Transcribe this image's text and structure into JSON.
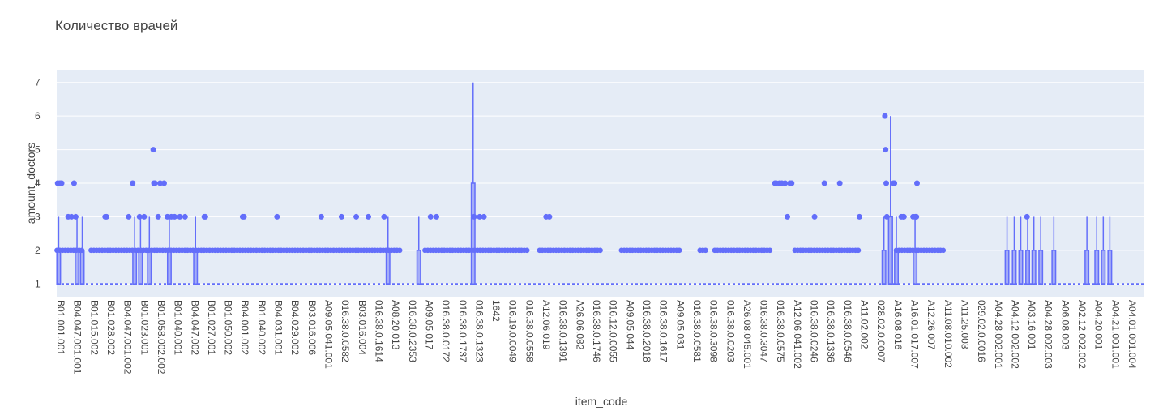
{
  "chart_data": {
    "type": "box",
    "title": "Количество врачей",
    "xlabel": "item_code",
    "ylabel": "amount_doctors",
    "ylim": [
      0.62,
      7.38
    ],
    "y_ticks": [
      1,
      2,
      3,
      4,
      5,
      6,
      7
    ],
    "grid": true,
    "colors": {
      "plot_bg": "#e5ecf6",
      "series": "#636efa",
      "grid": "#ffffff",
      "text": "#444444"
    },
    "x_tick_labels": [
      "B01.001.001",
      "B04.047.001.001",
      "B01.015.002",
      "B01.028.002",
      "B04.047.001.002",
      "B01.023.001",
      "B01.058.002.002",
      "B01.040.001",
      "B04.047.002",
      "B01.027.001",
      "B01.050.002",
      "B04.001.002",
      "B01.040.002",
      "B04.031.001",
      "B04.029.002",
      "B03.016.006",
      "A09.05.041.001",
      "016.38.0.0582",
      "B03.016.004",
      "016.38.0.1614",
      "A08.20.013",
      "016.38.0.2353",
      "A09.05.017",
      "016.38.0.0172",
      "016.38.0.1737",
      "016.38.0.1323",
      "1642",
      "016.19.0.0049",
      "016.38.0.0558",
      "A12.06.019",
      "016.38.0.1391",
      "A26.06.082",
      "016.38.0.1746",
      "016.12.0.0055",
      "A09.05.044",
      "016.38.0.2018",
      "016.38.0.1617",
      "A09.05.031",
      "016.38.0.0581",
      "016.38.0.3098",
      "016.38.0.0203",
      "A26.08.045.001",
      "016.38.0.3047",
      "016.38.0.0575",
      "A12.06.041.002",
      "016.38.0.0246",
      "016.38.0.1336",
      "016.38.0.0546",
      "A11.02.002",
      "028.02.0.0007",
      "A16.08.016",
      "A16.01.017.007",
      "A12.26.007",
      "A11.08.010.002",
      "A11.25.003",
      "029.02.0.0016",
      "A04.28.002.001",
      "A04.12.002.002",
      "A03.16.001",
      "A04.28.002.003",
      "A06.08.003",
      "A02.12.002.002",
      "A04.20.001",
      "A04.21.001.001",
      "A04.01.001.004"
    ],
    "baseline": 1,
    "point_bands": [
      {
        "from": 0.1,
        "to": 8.5,
        "value": 2
      },
      {
        "from": 10.5,
        "to": 105.5,
        "value": 2
      },
      {
        "from": 112.5,
        "to": 143.7,
        "value": 2
      },
      {
        "from": 147.5,
        "to": 166.5,
        "value": 2
      },
      {
        "from": 172.5,
        "to": 190.5,
        "value": 2
      },
      {
        "from": 196.5,
        "to": 199,
        "value": 2
      },
      {
        "from": 201,
        "to": 218.5,
        "value": 2
      },
      {
        "from": 225.5,
        "to": 245.5,
        "value": 2
      },
      {
        "from": 256.5,
        "to": 271.5,
        "value": 2
      }
    ],
    "outliers": [
      {
        "x": 0.3,
        "y": 4
      },
      {
        "x": 1,
        "y": 4
      },
      {
        "x": 1.5,
        "y": 4
      },
      {
        "x": 3.5,
        "y": 3
      },
      {
        "x": 4.5,
        "y": 3
      },
      {
        "x": 5.3,
        "y": 4
      },
      {
        "x": 5.8,
        "y": 3
      },
      {
        "x": 14.8,
        "y": 3
      },
      {
        "x": 15.2,
        "y": 3
      },
      {
        "x": 22,
        "y": 3
      },
      {
        "x": 25.3,
        "y": 3
      },
      {
        "x": 26.7,
        "y": 3
      },
      {
        "x": 23.2,
        "y": 4
      },
      {
        "x": 29.5,
        "y": 5
      },
      {
        "x": 29.7,
        "y": 4
      },
      {
        "x": 30,
        "y": 4
      },
      {
        "x": 31,
        "y": 3
      },
      {
        "x": 31.6,
        "y": 4
      },
      {
        "x": 32.8,
        "y": 4
      },
      {
        "x": 33.8,
        "y": 3
      },
      {
        "x": 35,
        "y": 3
      },
      {
        "x": 36,
        "y": 3
      },
      {
        "x": 37.6,
        "y": 3
      },
      {
        "x": 39.2,
        "y": 3
      },
      {
        "x": 45.1,
        "y": 3
      },
      {
        "x": 45.4,
        "y": 3
      },
      {
        "x": 56.8,
        "y": 3
      },
      {
        "x": 57.2,
        "y": 3
      },
      {
        "x": 67.3,
        "y": 3
      },
      {
        "x": 80.8,
        "y": 3
      },
      {
        "x": 87,
        "y": 3
      },
      {
        "x": 91.5,
        "y": 3
      },
      {
        "x": 95.2,
        "y": 3
      },
      {
        "x": 100,
        "y": 3
      },
      {
        "x": 114.2,
        "y": 3
      },
      {
        "x": 116,
        "y": 3
      },
      {
        "x": 127.5,
        "y": 3
      },
      {
        "x": 129.2,
        "y": 3
      },
      {
        "x": 130.5,
        "y": 3
      },
      {
        "x": 149.5,
        "y": 3
      },
      {
        "x": 150.5,
        "y": 3
      },
      {
        "x": 253,
        "y": 6
      },
      {
        "x": 253.2,
        "y": 5
      },
      {
        "x": 253.4,
        "y": 4
      },
      {
        "x": 255.6,
        "y": 4
      },
      {
        "x": 255.9,
        "y": 4
      },
      {
        "x": 258.6,
        "y": 3
      },
      {
        "x": 258.8,
        "y": 3
      },
      {
        "x": 261.6,
        "y": 3
      },
      {
        "x": 262.3,
        "y": 3
      },
      {
        "x": 262.6,
        "y": 3
      },
      {
        "x": 262.8,
        "y": 4
      },
      {
        "x": 219.4,
        "y": 4
      },
      {
        "x": 219.8,
        "y": 4
      },
      {
        "x": 220.8,
        "y": 4
      },
      {
        "x": 221.5,
        "y": 4
      },
      {
        "x": 222.5,
        "y": 4
      },
      {
        "x": 223.2,
        "y": 3
      },
      {
        "x": 224,
        "y": 4
      },
      {
        "x": 224.5,
        "y": 4
      },
      {
        "x": 231.5,
        "y": 3
      },
      {
        "x": 234.5,
        "y": 4
      },
      {
        "x": 239.2,
        "y": 4
      },
      {
        "x": 245.2,
        "y": 3
      },
      {
        "x": 253.6,
        "y": 3
      },
      {
        "x": 258,
        "y": 3
      },
      {
        "x": 296.4,
        "y": 3
      }
    ],
    "boxes": [
      {
        "x": 0.6,
        "w": 1.1,
        "q1": 1,
        "median": 1,
        "q3": 2,
        "upper": 3
      },
      {
        "x": 6.2,
        "w": 1.1,
        "q1": 1,
        "median": 1,
        "q3": 2,
        "upper": 3
      },
      {
        "x": 7.8,
        "w": 1.1,
        "q1": 1,
        "median": 1,
        "q3": 2,
        "upper": 3
      },
      {
        "x": 23.8,
        "w": 1.1,
        "q1": 1,
        "median": 1,
        "q3": 2,
        "upper": 3
      },
      {
        "x": 25.6,
        "w": 1.1,
        "q1": 1,
        "median": 1,
        "q3": 2,
        "upper": 3
      },
      {
        "x": 28.3,
        "w": 1.1,
        "q1": 1,
        "median": 1,
        "q3": 2,
        "upper": 3
      },
      {
        "x": 34.4,
        "w": 1.1,
        "q1": 1,
        "median": 1,
        "q3": 2,
        "upper": 3
      },
      {
        "x": 42.4,
        "w": 1.1,
        "q1": 1,
        "median": 1,
        "q3": 2,
        "upper": 3
      },
      {
        "x": 101.2,
        "w": 1.1,
        "q1": 1,
        "median": 1,
        "q3": 2,
        "upper": 3
      },
      {
        "x": 110.6,
        "w": 1.1,
        "q1": 1,
        "median": 1,
        "q3": 2,
        "upper": 3
      },
      {
        "x": 127.2,
        "w": 1.1,
        "q1": 1,
        "median": 2,
        "q3": 4,
        "upper": 7
      },
      {
        "x": 252.7,
        "w": 1.1,
        "q1": 1,
        "median": 1,
        "q3": 2,
        "upper": 3
      },
      {
        "x": 254.7,
        "w": 1.2,
        "q1": 1,
        "median": 1,
        "q3": 3,
        "upper": 6
      },
      {
        "x": 256.5,
        "w": 1.1,
        "q1": 1,
        "median": 1,
        "q3": 2,
        "upper": 3
      },
      {
        "x": 262.2,
        "w": 1.1,
        "q1": 1,
        "median": 1,
        "q3": 2,
        "upper": 3
      },
      {
        "x": 290.3,
        "w": 1.1,
        "q1": 1,
        "median": 1,
        "q3": 2,
        "upper": 3
      },
      {
        "x": 292.5,
        "w": 1.1,
        "q1": 1,
        "median": 1,
        "q3": 2,
        "upper": 3
      },
      {
        "x": 294.5,
        "w": 1.1,
        "q1": 1,
        "median": 1,
        "q3": 2,
        "upper": 3
      },
      {
        "x": 296.6,
        "w": 1.1,
        "q1": 1,
        "median": 1,
        "q3": 2,
        "upper": 3
      },
      {
        "x": 298.5,
        "w": 1.1,
        "q1": 1,
        "median": 1,
        "q3": 2,
        "upper": 3
      },
      {
        "x": 300.6,
        "w": 1.1,
        "q1": 1,
        "median": 1,
        "q3": 2,
        "upper": 3
      },
      {
        "x": 304.6,
        "w": 1.1,
        "q1": 1,
        "median": 1,
        "q3": 2,
        "upper": 3
      },
      {
        "x": 314.7,
        "w": 1.1,
        "q1": 1,
        "median": 1,
        "q3": 2,
        "upper": 3
      },
      {
        "x": 317.7,
        "w": 1.1,
        "q1": 1,
        "median": 1,
        "q3": 2,
        "upper": 3
      },
      {
        "x": 319.7,
        "w": 1.1,
        "q1": 1,
        "median": 1,
        "q3": 2,
        "upper": 3
      },
      {
        "x": 321.7,
        "w": 1.1,
        "q1": 1,
        "median": 1,
        "q3": 2,
        "upper": 3
      }
    ]
  }
}
